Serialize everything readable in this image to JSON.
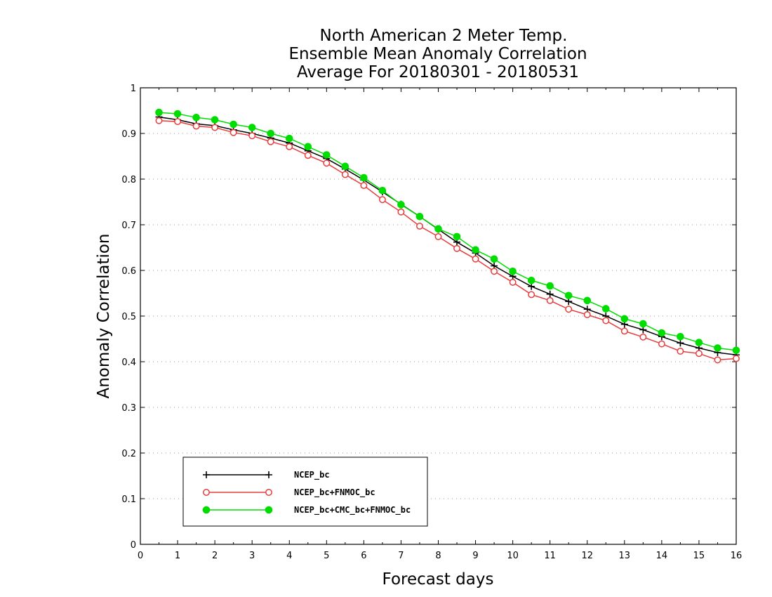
{
  "chart_data": {
    "type": "line",
    "title": [
      "North American 2 Meter Temp.",
      "Ensemble Mean Anomaly Correlation",
      "Average For 20180301 - 20180531"
    ],
    "xlabel": "Forecast days",
    "ylabel": "Anomaly Correlation",
    "xlim": [
      0,
      16
    ],
    "ylim": [
      0,
      1
    ],
    "x_ticks": [
      0,
      1,
      2,
      3,
      4,
      5,
      6,
      7,
      8,
      9,
      10,
      11,
      12,
      13,
      14,
      15,
      16
    ],
    "y_ticks": [
      0,
      0.1,
      0.2,
      0.3,
      0.4,
      0.5,
      0.6,
      0.7,
      0.8,
      0.9,
      1
    ],
    "y_tick_labels": [
      "0",
      "0.1",
      "0.2",
      "0.3",
      "0.4",
      "0.5",
      "0.6",
      "0.7",
      "0.8",
      "0.9",
      "1"
    ],
    "x_tick_labels": [
      "0",
      "1",
      "2",
      "3",
      "4",
      "5",
      "6",
      "7",
      "8",
      "9",
      "10",
      "11",
      "12",
      "13",
      "14",
      "15",
      "16"
    ],
    "grid": "horizontal dotted",
    "legend_position": "bottom-left",
    "x": [
      0.5,
      1,
      1.5,
      2,
      2.5,
      3,
      3.5,
      4,
      4.5,
      5,
      5.5,
      6,
      6.5,
      7,
      7.5,
      8,
      8.5,
      9,
      9.5,
      10,
      10.5,
      11,
      11.5,
      12,
      12.5,
      13,
      13.5,
      14,
      14.5,
      15,
      15.5,
      16
    ],
    "series": [
      {
        "name": "NCEP_bc",
        "color": "#000000",
        "marker": "plus",
        "values": [
          0.936,
          0.93,
          0.921,
          0.917,
          0.908,
          0.9,
          0.89,
          0.879,
          0.862,
          0.845,
          0.822,
          0.798,
          0.772,
          0.745,
          0.718,
          0.69,
          0.662,
          0.638,
          0.61,
          0.587,
          0.565,
          0.548,
          0.532,
          0.515,
          0.5,
          0.482,
          0.47,
          0.455,
          0.441,
          0.43,
          0.42,
          0.415
        ]
      },
      {
        "name": "NCEP_bc+FNMOC_bc",
        "color": "#e83c3c",
        "marker": "open-circle",
        "values": [
          0.928,
          0.926,
          0.916,
          0.913,
          0.902,
          0.895,
          0.882,
          0.871,
          0.852,
          0.835,
          0.81,
          0.786,
          0.755,
          0.728,
          0.697,
          0.674,
          0.648,
          0.625,
          0.598,
          0.574,
          0.547,
          0.534,
          0.515,
          0.503,
          0.49,
          0.467,
          0.454,
          0.439,
          0.423,
          0.418,
          0.404,
          0.407
        ]
      },
      {
        "name": "NCEP_bc+CMC_bc+FNMOC_bc",
        "color": "#00dd00",
        "marker": "filled-circle",
        "values": [
          0.946,
          0.943,
          0.935,
          0.93,
          0.92,
          0.913,
          0.9,
          0.889,
          0.871,
          0.853,
          0.828,
          0.803,
          0.775,
          0.744,
          0.718,
          0.691,
          0.674,
          0.645,
          0.625,
          0.598,
          0.578,
          0.566,
          0.545,
          0.534,
          0.516,
          0.494,
          0.483,
          0.463,
          0.455,
          0.442,
          0.43,
          0.425
        ]
      }
    ]
  }
}
